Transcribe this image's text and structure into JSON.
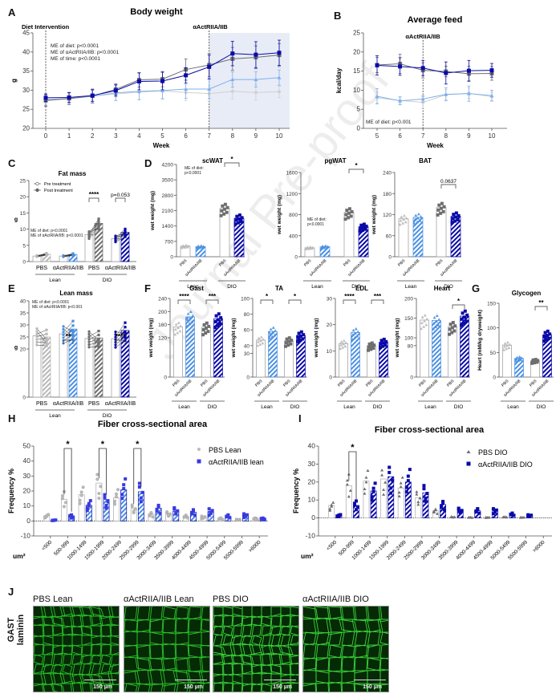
{
  "watermark": "Journal Pre-proof",
  "colors": {
    "pbs_lean": "#b8b8b8",
    "act_lean": "#4a90e2",
    "pbs_dio": "#6e6e6e",
    "act_dio": "#0a0aa8",
    "act_lean_line": "#7fb0ec",
    "pbs_lean_line": "#d0d0d0",
    "treatment_shade": "#e8ecf7"
  },
  "panels": {
    "A": "A",
    "B": "B",
    "C": "C",
    "D": "D",
    "E": "E",
    "F": "F",
    "G": "G",
    "H": "H",
    "I": "I",
    "J": "J"
  },
  "chart_data": [
    {
      "id": "A",
      "type": "line",
      "title": "Body weight",
      "xlabel": "Week",
      "ylabel": "g",
      "x": [
        0,
        1,
        2,
        3,
        4,
        5,
        6,
        7,
        8,
        9,
        10
      ],
      "xlim": [
        0,
        10
      ],
      "ylim": [
        20,
        45
      ],
      "yticks": [
        20,
        25,
        30,
        35,
        40,
        45
      ],
      "annotations": [
        "Diet Intervention",
        "αActRIIA/IIB"
      ],
      "stats": [
        "ME of diet: p<0.0001",
        "ME of αActRIIA/IIB: p<0.0001",
        "ME of time: p<0.0001"
      ],
      "shade_from": 7,
      "series": [
        {
          "name": "PBS Lean",
          "color": "pbs_lean_line",
          "marker": "circle",
          "values": [
            27.3,
            27.8,
            28.5,
            29.0,
            29.5,
            29.8,
            29.4,
            29.1,
            29.7,
            29.4,
            29.6
          ],
          "err": [
            1.2,
            1.2,
            1.5,
            1.7,
            2.0,
            2.0,
            2.1,
            2.0,
            2.0,
            2.0,
            1.5
          ]
        },
        {
          "name": "αActRIIA/IIB Lean",
          "color": "act_lean_line",
          "marker": "triangle",
          "values": [
            27.5,
            27.8,
            28.4,
            29.3,
            29.7,
            29.9,
            30.3,
            30.3,
            32.8,
            32.8,
            33.3
          ],
          "err": [
            1.5,
            1.6,
            1.8,
            2.0,
            2.2,
            2.2,
            2.4,
            2.5,
            2.0,
            2.0,
            2.0
          ]
        },
        {
          "name": "PBS DIO",
          "color": "pbs_dio",
          "marker": "square",
          "values": [
            27.3,
            27.8,
            28.5,
            30.2,
            32.7,
            32.9,
            35.4,
            36.6,
            38.2,
            38.6,
            39.2
          ],
          "err": [
            1.5,
            1.5,
            1.8,
            1.5,
            1.9,
            2.0,
            2.8,
            3.0,
            3.0,
            3.0,
            3.0
          ]
        },
        {
          "name": "αActRIIA/IIB DIO",
          "color": "act_dio",
          "marker": "square",
          "values": [
            28.0,
            28.1,
            28.6,
            29.9,
            32.3,
            32.4,
            33.9,
            36.1,
            39.6,
            39.3,
            39.8
          ],
          "err": [
            1.0,
            1.3,
            1.5,
            1.5,
            2.2,
            2.3,
            2.0,
            3.1,
            3.2,
            3.4,
            3.3
          ]
        }
      ]
    },
    {
      "id": "B",
      "type": "line",
      "title": "Average feed",
      "xlabel": "Week",
      "ylabel": "kcal/day",
      "x": [
        5,
        6,
        7,
        8,
        9,
        10
      ],
      "xlim": [
        5,
        10
      ],
      "ylim": [
        0,
        25
      ],
      "yticks": [
        0,
        5,
        10,
        15,
        20,
        25
      ],
      "annotations": [
        "αActRIIA/IIB"
      ],
      "stats": [
        "ME of diet: p<0.001"
      ],
      "vline": 7,
      "series": [
        {
          "name": "PBS Lean",
          "color": "pbs_lean_line",
          "marker": "circle",
          "values": [
            8.0,
            7.3,
            6.8,
            8.8,
            9.2,
            8.3
          ],
          "err": [
            1.5,
            1.0,
            1.5,
            1.3,
            1.4,
            1.2
          ]
        },
        {
          "name": "αActRIIA/IIB Lean",
          "color": "act_lean_line",
          "marker": "triangle",
          "values": [
            8.4,
            7.2,
            7.7,
            8.9,
            9.1,
            8.6
          ],
          "err": [
            2.0,
            1.0,
            0.8,
            1.7,
            2.0,
            1.4
          ]
        },
        {
          "name": "PBS DIO",
          "color": "pbs_dio",
          "marker": "square",
          "values": [
            16.6,
            16.9,
            15.2,
            14.9,
            14.3,
            14.4
          ],
          "err": [
            2.0,
            2.5,
            2.0,
            1.4,
            2.0,
            1.8
          ]
        },
        {
          "name": "αActRIIA/IIB DIO",
          "color": "act_dio",
          "marker": "square",
          "values": [
            16.5,
            16.2,
            15.8,
            14.5,
            15.1,
            15.2
          ],
          "err": [
            2.5,
            2.3,
            2.0,
            2.9,
            2.7,
            1.8
          ]
        }
      ]
    },
    {
      "id": "C",
      "type": "bar",
      "title": "Fat mass",
      "ylabel": "g",
      "ylim": [
        0,
        25
      ],
      "yticks": [
        0,
        5,
        10,
        15,
        20,
        25
      ],
      "legend": [
        "Pre treatment",
        "Post treatment"
      ],
      "stats": [
        "ME of diet: p<0.0001",
        "ME of αActRIIA/IIB: p<0.0001"
      ],
      "categories": [
        "PBS",
        "αActRIIA/IIB",
        "PBS",
        "αActRIIA/IIB"
      ],
      "groups": [
        "Lean",
        "DIO"
      ],
      "series": [
        {
          "name": "Pre treatment",
          "values": [
            1.7,
            1.7,
            8.3,
            7.1
          ]
        },
        {
          "name": "Post treatment",
          "values": [
            2.3,
            2.2,
            11.8,
            9.0
          ]
        }
      ],
      "significance": [
        {
          "pair": 2,
          "label": "****"
        },
        {
          "pair": 3,
          "label": "p=0.053"
        }
      ]
    },
    {
      "id": "D-scWAT",
      "type": "bar",
      "title": "scWAT",
      "ylabel": "wet weight (mg)",
      "ylim": [
        0,
        4200
      ],
      "yticks": [
        0,
        700,
        1400,
        2100,
        2800,
        3500,
        4200
      ],
      "stats": [
        "ME of diet:",
        "p<0.0001"
      ],
      "categories": [
        "PBS",
        "αActRIIA/IIB",
        "PBS",
        "αActRIIA/IIB"
      ],
      "groups": [
        "Lean",
        "DIO"
      ],
      "values": [
        480,
        460,
        2200,
        1750
      ],
      "significance": [
        {
          "between": [
            2,
            3
          ],
          "label": "*"
        }
      ]
    },
    {
      "id": "D-pgWAT",
      "type": "bar",
      "title": "pgWAT",
      "ylabel": "wet weight (mg)",
      "ylim": [
        0,
        1600
      ],
      "yticks": [
        0,
        400,
        800,
        1200,
        1600
      ],
      "stats": [
        "ME of diet:",
        "p<0.0001"
      ],
      "categories": [
        "PBS",
        "αActRIIA/IIB",
        "PBS",
        "αActRIIA/IIB"
      ],
      "groups": [
        "Lean",
        "DIO"
      ],
      "values": [
        170,
        190,
        840,
        570
      ],
      "significance": [
        {
          "between": [
            2,
            3
          ],
          "label": "*"
        }
      ]
    },
    {
      "id": "D-BAT",
      "type": "bar",
      "title": "BAT",
      "ylabel": "wet weight (mg)",
      "ylim": [
        0,
        240
      ],
      "yticks": [
        0,
        60,
        120,
        180,
        240
      ],
      "categories": [
        "PBS",
        "αActRIIA/IIB",
        "PBS",
        "αActRIIA/IIB"
      ],
      "groups": [
        "Lean",
        "DIO"
      ],
      "values": [
        108,
        112,
        140,
        115
      ],
      "significance": [
        {
          "between": [
            2,
            3
          ],
          "label": "0.0637"
        }
      ]
    },
    {
      "id": "E",
      "type": "bar",
      "title": "Lean mass",
      "ylabel": "g",
      "ylim": [
        0,
        40
      ],
      "yticks": [
        0,
        20,
        25,
        30,
        35,
        40
      ],
      "stats": [
        "ME of diet: p<0.0001",
        "ME of αActRIIA/IIB: p<0.001"
      ],
      "categories": [
        "PBS",
        "αActRIIA/IIB",
        "PBS",
        "αActRIIA/IIB"
      ],
      "groups": [
        "Lean",
        "DIO"
      ],
      "series": [
        {
          "name": "Pre treatment",
          "values": [
            25.5,
            26.3,
            24.4,
            24.3
          ]
        },
        {
          "name": "Post treatment",
          "values": [
            25.0,
            28.3,
            24.6,
            27.7
          ]
        }
      ],
      "significance": [
        {
          "pair": 1,
          "label": "**"
        },
        {
          "pair": 3,
          "label": "****"
        }
      ]
    },
    {
      "id": "F-Gast",
      "type": "bar",
      "title": "Gast",
      "ylabel": "wet weight (mg)",
      "ylim": [
        0,
        240
      ],
      "yticks": [
        0,
        120,
        160,
        200,
        240
      ],
      "categories": [
        "PBS",
        "αActRIIA/IIB",
        "PBS",
        "αActRIIA/IIB"
      ],
      "groups": [
        "Lean",
        "DIO"
      ],
      "values": [
        153,
        184,
        152,
        178
      ],
      "significance": [
        {
          "between": [
            0,
            1
          ],
          "label": "****"
        },
        {
          "between": [
            2,
            3
          ],
          "label": "***"
        }
      ]
    },
    {
      "id": "F-TA",
      "type": "bar",
      "title": "TA",
      "ylabel": "wet weight (mg)",
      "ylim": [
        0,
        100
      ],
      "yticks": [
        0,
        30,
        40,
        60,
        80,
        100
      ],
      "categories": [
        "PBS",
        "αActRIIA/IIB",
        "PBS",
        "αActRIIA/IIB"
      ],
      "groups": [
        "Lean",
        "DIO"
      ],
      "values": [
        47,
        58,
        46,
        53
      ],
      "significance": [
        {
          "between": [
            0,
            1
          ],
          "label": "*"
        },
        {
          "between": [
            2,
            3
          ],
          "label": "*"
        }
      ]
    },
    {
      "id": "F-EDL",
      "type": "bar",
      "title": "EDL",
      "ylabel": "wet weight (mg)",
      "ylim": [
        0,
        30
      ],
      "yticks": [
        0,
        10,
        20,
        30
      ],
      "categories": [
        "PBS",
        "αActRIIA/IIB",
        "PBS",
        "αActRIIA/IIB"
      ],
      "groups": [
        "Lean",
        "DIO"
      ],
      "values": [
        12.8,
        17.0,
        12.0,
        13.3
      ],
      "significance": [
        {
          "between": [
            0,
            1
          ],
          "label": "****"
        },
        {
          "between": [
            2,
            3
          ],
          "label": "***"
        }
      ]
    },
    {
      "id": "F-Heart",
      "type": "bar",
      "title": "Heart",
      "ylabel": "wet weight (mg)",
      "ylim": [
        0,
        200
      ],
      "yticks": [
        0,
        80,
        100,
        150,
        200
      ],
      "categories": [
        "PBS",
        "αActRIIA/IIB",
        "PBS",
        "αActRIIA/IIB"
      ],
      "groups": [
        "Lean",
        "DIO"
      ],
      "values": [
        145,
        144,
        128,
        155
      ],
      "significance": [
        {
          "between": [
            2,
            3
          ],
          "label": "*"
        }
      ]
    },
    {
      "id": "G",
      "type": "bar",
      "title": "Glycogen",
      "ylabel": "Heart (mM/kg dryweight)",
      "ylim": [
        0,
        150
      ],
      "yticks": [
        0,
        50,
        100,
        150
      ],
      "categories": [
        "PBS",
        "αActRIIA/IIB",
        "PBS",
        "αActRIIA/IIB"
      ],
      "groups": [
        "Lean",
        "DIO"
      ],
      "values": [
        65,
        38,
        33,
        86
      ],
      "significance": [
        {
          "between": [
            2,
            3
          ],
          "label": "**"
        }
      ]
    },
    {
      "id": "H",
      "type": "bar",
      "title": "Fiber cross-sectional area",
      "ylabel": "Frequency %",
      "xlabel": "um²",
      "ylim": [
        -10,
        50
      ],
      "yticks": [
        -10,
        0,
        10,
        20,
        30,
        40,
        50
      ],
      "categories": [
        "<500",
        "500-999",
        "1000-1499",
        "1500-1999",
        "2000-2499",
        "2500-2999",
        "3000-3499",
        "3500-3999",
        "4000-4499",
        "4500-4999",
        "5000-5499",
        "5500-5999",
        ">6000"
      ],
      "series": [
        {
          "name": "PBS Lean",
          "values": [
            3.5,
            14.5,
            17.5,
            25.3,
            15.5,
            8.3,
            4.5,
            4.5,
            3.0,
            2.5,
            1.5,
            0.8,
            1.5
          ]
        },
        {
          "name": "αActRIIA/IIB lean",
          "values": [
            0.5,
            3.0,
            10.5,
            14.3,
            20.8,
            19.5,
            8.5,
            6.5,
            5.8,
            6.3,
            3.0,
            3.5,
            1.5
          ]
        }
      ],
      "significance": [
        {
          "index": 1,
          "label": "*"
        },
        {
          "index": 3,
          "label": "*"
        },
        {
          "index": 5,
          "label": "*"
        }
      ]
    },
    {
      "id": "I",
      "type": "bar",
      "title": "Fiber cross-sectional area",
      "ylabel": "Frequency %",
      "xlabel": "um²",
      "ylim": [
        -10,
        40
      ],
      "yticks": [
        -10,
        0,
        10,
        20,
        30,
        40
      ],
      "categories": [
        "<500",
        "500-999",
        "1000-1499",
        "1500-1999",
        "2000-2499",
        "2500-2999",
        "3000-3499",
        "3500-3999",
        "4000-4499",
        "4500-4999",
        "5000-5499",
        "5500-5999",
        ">6000"
      ],
      "series": [
        {
          "name": "PBS DIO",
          "values": [
            7.0,
            18.0,
            20.5,
            21.7,
            16.7,
            11.3,
            4.0,
            0.5,
            0.3,
            0.3,
            0.5,
            0.3,
            0
          ]
        },
        {
          "name": "αActRIIA/IIB DIO",
          "values": [
            1.5,
            7.0,
            15.0,
            23.0,
            20.0,
            14.0,
            7.5,
            4.0,
            4.0,
            4.0,
            2.0,
            1.3,
            0
          ]
        }
      ],
      "significance": [
        {
          "index": 1,
          "label": "*"
        }
      ]
    }
  ],
  "micrographs": {
    "row_label_1": "GAST",
    "row_label_2": "laminin",
    "scale_bar": "150 µm",
    "images": [
      "PBS Lean",
      "αActRIIA/IIB Lean",
      "PBS DIO",
      "αActRIIA/IIB DIO"
    ]
  }
}
